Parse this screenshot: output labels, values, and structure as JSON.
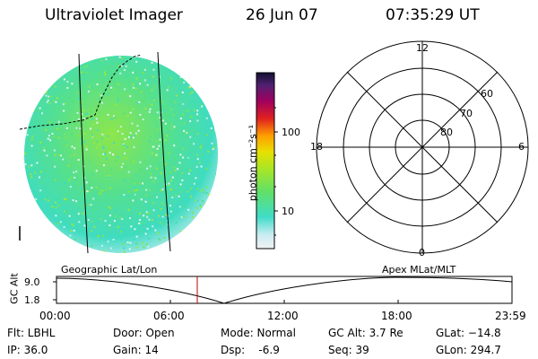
{
  "header": {
    "title": "Ultraviolet Imager",
    "date": "26 Jun 07",
    "time": "07:35:29 UT"
  },
  "colorbar": {
    "unit_label": "photon cm⁻²s⁻¹",
    "ticks": [
      "100",
      "10"
    ]
  },
  "polar_plot": {
    "mlt_labels": [
      "12",
      "18",
      "6",
      "0"
    ],
    "lat_labels": [
      "60",
      "70",
      "80"
    ]
  },
  "timeline": {
    "left_label": "Geographic Lat/Lon",
    "right_label": "Apex MLat/MLT",
    "axis_name": "GC Alt",
    "y_ticks": [
      "9.0",
      "1.8"
    ],
    "x_ticks": [
      "00:00",
      "06:00",
      "12:00",
      "18:00",
      "23:59"
    ]
  },
  "info": {
    "flt": "Flt: LBHL",
    "ip": "IP: 36.0",
    "door": "Door: Open",
    "gain": "Gain: 14",
    "mode": "Mode: Normal",
    "dsp": "Dsp:    -6.9",
    "gcalt": "GC Alt: 3.7 Re",
    "seq": "Seq: 39",
    "glat": "GLat: −14.8",
    "glon": "GLon: 294.7"
  },
  "colors": {
    "image_base": "#3fe0b0",
    "image_bright": "#9be83a",
    "image_dim": "#c8eef0",
    "marker": "#c00000"
  }
}
